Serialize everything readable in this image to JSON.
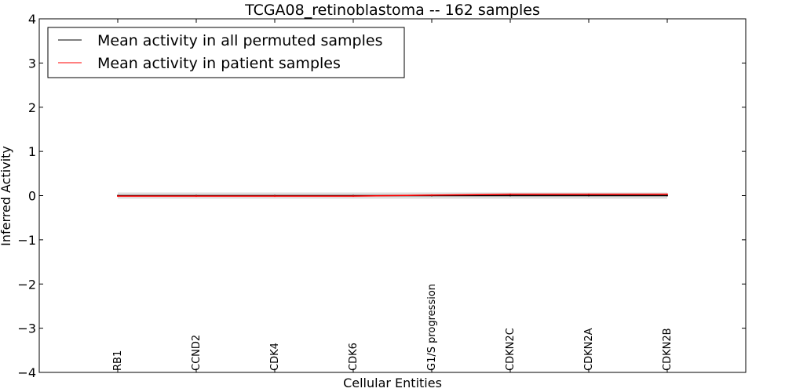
{
  "chart_data": {
    "type": "line",
    "title": "TCGA08_retinoblastoma -- 162 samples",
    "xlabel": "Cellular Entities",
    "ylabel": "Inferred Activity",
    "ylim": [
      -4,
      4
    ],
    "yticks": [
      -4,
      -3,
      -2,
      -1,
      0,
      1,
      2,
      3,
      4
    ],
    "ytick_labels": [
      "−4",
      "−3",
      "−2",
      "−1",
      "0",
      "1",
      "2",
      "3",
      "4"
    ],
    "categories": [
      "RB1",
      "CCND2",
      "CDK4",
      "CDK6",
      "G1/S progression",
      "CDKN2C",
      "CDKN2A",
      "CDKN2B"
    ],
    "legend_position": "top-left",
    "grid": false,
    "series": [
      {
        "name": "Mean activity in all permuted samples",
        "color": "#000000",
        "values": [
          0.0,
          0.0,
          0.0,
          0.0,
          0.0,
          0.0,
          0.0,
          0.0
        ],
        "band": 0.07,
        "band_color": "#c8c8c8"
      },
      {
        "name": "Mean activity in patient samples",
        "color": "#ff0000",
        "values": [
          -0.01,
          -0.01,
          -0.01,
          -0.01,
          0.01,
          0.03,
          0.03,
          0.03
        ],
        "band": 0.02,
        "band_color": "#ffb0b0"
      }
    ]
  }
}
